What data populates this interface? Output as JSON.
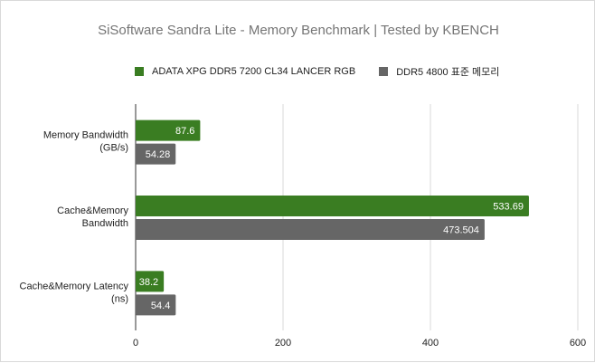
{
  "chart_data": {
    "type": "bar",
    "orientation": "horizontal",
    "title": "SiSoftware Sandra Lite - Memory Benchmark | Tested by KBENCH",
    "categories": [
      [
        "Memory Bandwidth",
        "(GB/s)"
      ],
      [
        "Cache&Memory",
        "Bandwidth"
      ],
      [
        "Cache&Memory Latency",
        "(ns)"
      ]
    ],
    "series": [
      {
        "name": "ADATA XPG DDR5 7200 CL34 LANCER RGB",
        "color": "#3a7d22",
        "values": [
          87.6,
          533.69,
          38.2
        ],
        "labels": [
          "87.6",
          "533.69",
          "38.2"
        ]
      },
      {
        "name": "DDR5 4800 표준 메모리",
        "color": "#666666",
        "values": [
          54.28,
          473.504,
          54.4
        ],
        "labels": [
          "54.28",
          "473.504",
          "54.4"
        ]
      }
    ],
    "xlim": [
      0,
      600
    ],
    "xticks": [
      "0",
      "200",
      "400",
      "600"
    ],
    "grid": true,
    "legend_position": "top"
  }
}
